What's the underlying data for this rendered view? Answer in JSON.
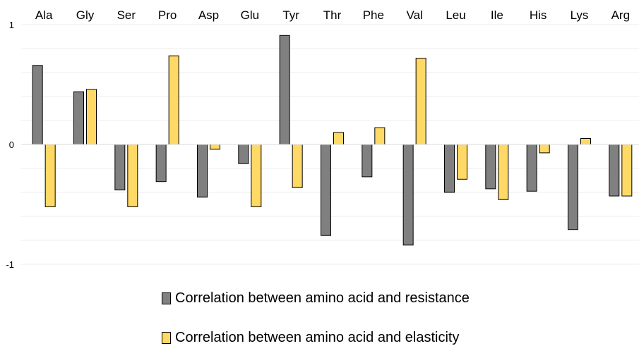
{
  "chart_data": {
    "type": "bar",
    "categories": [
      "Ala",
      "Gly",
      "Ser",
      "Pro",
      "Asp",
      "Glu",
      "Tyr",
      "Thr",
      "Phe",
      "Val",
      "Leu",
      "Ile",
      "His",
      "Lys",
      "Arg"
    ],
    "series": [
      {
        "name": "Correlation between amino acid and resistance",
        "color": "#808080",
        "values": [
          0.66,
          0.44,
          -0.38,
          -0.31,
          -0.44,
          -0.16,
          0.91,
          -0.76,
          -0.27,
          -0.84,
          -0.4,
          -0.37,
          -0.39,
          -0.71,
          -0.43
        ]
      },
      {
        "name": "Correlation between amino acid and elasticity",
        "color": "#FFD966",
        "values": [
          -0.52,
          0.46,
          -0.52,
          0.74,
          -0.04,
          -0.52,
          -0.36,
          0.1,
          0.14,
          0.72,
          -0.29,
          -0.46,
          -0.07,
          0.05,
          -0.43
        ]
      }
    ],
    "ylim": [
      -1,
      1
    ],
    "yticks": [
      "1",
      "0",
      "-1"
    ],
    "category_labels_position": "top",
    "legend_position": "bottom",
    "grid": true
  }
}
